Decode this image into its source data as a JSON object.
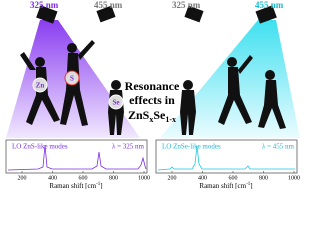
{
  "title": {
    "line1": "Resonance",
    "line2": "effects in",
    "formula": [
      "ZnS",
      "x",
      "Se",
      "1-x"
    ]
  },
  "left": {
    "lamp_on": "325 nm",
    "lamp_off": "455 nm",
    "atoms": [
      "Zn",
      "S",
      "Se"
    ],
    "plot": {
      "label": "LO ZnS-like modes",
      "wavelength": "λ = 325 nm",
      "xticks": [
        "200",
        "400",
        "600",
        "800",
        "1000"
      ],
      "xlabel": [
        "Raman shift [cm",
        "-1",
        "]"
      ]
    }
  },
  "right": {
    "lamp_off": "325 nm",
    "lamp_on": "455 nm",
    "plot": {
      "label": "LO ZnSe-like modes",
      "wavelength": "λ = 455 nm",
      "xticks": [
        "200",
        "400",
        "600",
        "800",
        "1000"
      ],
      "xlabel": [
        "Raman shift [cm",
        "-1",
        "]"
      ]
    }
  }
}
